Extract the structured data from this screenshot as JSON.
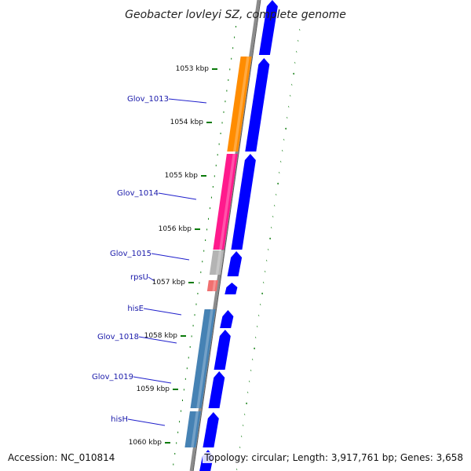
{
  "title": "Geobacter lovleyi SZ, complete genome",
  "footer": {
    "accession": "Accession: NC_010814",
    "topology": "Topology: circular; Length: 3,917,761 bp; Genes: 3,658"
  },
  "colors": {
    "backbone": "#8c8c8c",
    "cds": "#0000ff",
    "tick": "#0a7a0a",
    "label_line": "#2020cc"
  },
  "kbp_ticks": [
    "1053 kbp",
    "1054 kbp",
    "1055 kbp",
    "1056 kbp",
    "1057 kbp",
    "1058 kbp",
    "1059 kbp",
    "1060 kbp"
  ],
  "genes": [
    {
      "label": "Glov_1013",
      "color": "#ff8c00"
    },
    {
      "label": "Glov_1014",
      "color": "#ff1a8c"
    },
    {
      "label": "Glov_1015",
      "color": "#b4b4b4"
    },
    {
      "label": "rpsU",
      "color": "#f07070"
    },
    {
      "label": "hisE",
      "color": "#4682b4"
    },
    {
      "label": "Glov_1018",
      "color": "#4682b4"
    },
    {
      "label": "Glov_1019",
      "color": "#4682b4"
    },
    {
      "label": "hisH",
      "color": "#4682b4"
    }
  ]
}
